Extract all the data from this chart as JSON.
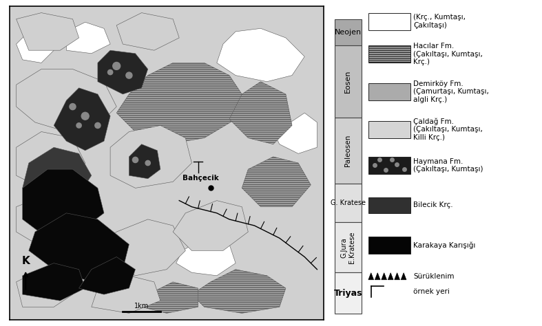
{
  "fig_width": 7.87,
  "fig_height": 4.74,
  "dpi": 100,
  "c_white": "#ffffff",
  "c_hacılar": "#b8b8b8",
  "c_demirkoy": "#a8a8a8",
  "c_caldag": "#d0d0d0",
  "c_haymana_bg": "#252525",
  "c_bilecik": "#383838",
  "c_karakaya": "#080808",
  "c_light_bg": "#d8d8d8",
  "strat_neojen_color": "#a8a8a8",
  "strat_eosen_color": "#c0c0c0",
  "strat_paleosen_color": "#d0d0d0",
  "strat_gkratese_color": "#e0e0e0",
  "strat_gjura_color": "#e8e8e8",
  "bahcecik_label": "Bahçecik",
  "north_label": "K",
  "scale_label": "1km"
}
